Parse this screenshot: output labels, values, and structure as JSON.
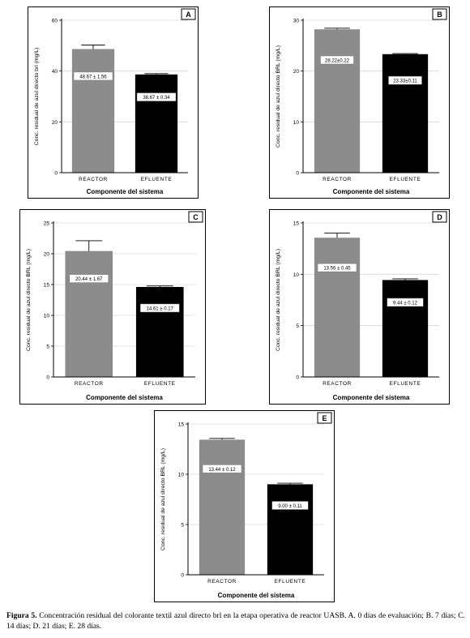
{
  "chart_data": [
    {
      "type": "bar",
      "panel_letter": "A",
      "categories": [
        "REACTOR",
        "EFLUENTE"
      ],
      "values": [
        48.67,
        38.67
      ],
      "errors": [
        1.56,
        0.34
      ],
      "data_labels": [
        "48.67 ± 1.56",
        "38.67 ± 0.34"
      ],
      "colors": [
        "#8c8c8c",
        "#000000"
      ],
      "xlabel": "Componente del sistema",
      "ylabel": "Conc. residual de azul directo brl (mg/L)",
      "ylim": [
        0,
        60
      ],
      "yticks": [
        0,
        20,
        40,
        60
      ],
      "grid": true
    },
    {
      "type": "bar",
      "panel_letter": "B",
      "categories": [
        "REACTOR",
        "EFLUENTE"
      ],
      "values": [
        28.22,
        23.33
      ],
      "errors": [
        0.22,
        0.11
      ],
      "data_labels": [
        "28.22±0.22",
        "23.33±0.11"
      ],
      "colors": [
        "#8c8c8c",
        "#000000"
      ],
      "xlabel": "Componente del sistema",
      "ylabel": "Conc. residual de azul directo BRL (mg/L)",
      "ylim": [
        0,
        30
      ],
      "yticks": [
        0,
        10,
        20,
        30
      ],
      "grid": true
    },
    {
      "type": "bar",
      "panel_letter": "C",
      "categories": [
        "REACTOR",
        "EFLUENTE"
      ],
      "values": [
        20.44,
        14.61
      ],
      "errors": [
        1.67,
        0.17
      ],
      "data_labels": [
        "20.44 ± 1.67",
        "14.61 ± 0.17"
      ],
      "colors": [
        "#8c8c8c",
        "#000000"
      ],
      "xlabel": "Componente del sistema",
      "ylabel": "Conc. residual de azul directo BRL (mg/L)",
      "ylim": [
        0,
        25
      ],
      "yticks": [
        0,
        5,
        10,
        15,
        20,
        25
      ],
      "grid": true
    },
    {
      "type": "bar",
      "panel_letter": "D",
      "categories": [
        "REACTOR",
        "EFLUENTE"
      ],
      "values": [
        13.56,
        9.44
      ],
      "errors": [
        0.45,
        0.12
      ],
      "data_labels": [
        "13.56 ± 0.45",
        "9.44 ± 0.12"
      ],
      "colors": [
        "#8c8c8c",
        "#000000"
      ],
      "xlabel": "Componente del sistema",
      "ylabel": "Conc. residual de azul directo BRL (mg/L)",
      "ylim": [
        0,
        15
      ],
      "yticks": [
        0,
        5,
        10,
        15
      ],
      "grid": true
    },
    {
      "type": "bar",
      "panel_letter": "E",
      "categories": [
        "REACTOR",
        "EFLUENTE"
      ],
      "values": [
        13.44,
        9.0
      ],
      "errors": [
        0.12,
        0.11
      ],
      "data_labels": [
        "13.44 ± 0.12",
        "9.00 ± 0.11"
      ],
      "colors": [
        "#8c8c8c",
        "#000000"
      ],
      "xlabel": "Componente del sistema",
      "ylabel": "Conc. residual de azul directo BRL (mg/L)",
      "ylim": [
        0,
        15
      ],
      "yticks": [
        0,
        5,
        10,
        15
      ],
      "grid": true
    }
  ],
  "caption": {
    "lead": "Figura 5.",
    "text": " Concentración residual del colorante textil azul directo brl en la etapa operativa de reactor UASB. A. 0 días de evaluación; B. 7 días; C. 14 días; D. 21 días; E. 28 días."
  }
}
